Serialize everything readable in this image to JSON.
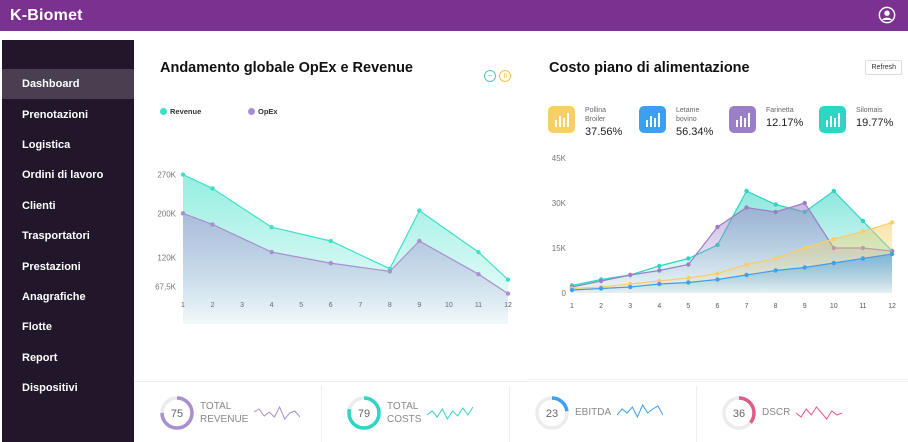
{
  "app": {
    "title": "K-Biomet"
  },
  "sidebar": {
    "items": [
      {
        "label": "Dashboard",
        "active": true
      },
      {
        "label": "Prenotazioni"
      },
      {
        "label": "Logistica"
      },
      {
        "label": "Ordini di lavoro"
      },
      {
        "label": "Clienti"
      },
      {
        "label": "Trasportatori"
      },
      {
        "label": "Prestazioni"
      },
      {
        "label": "Anagrafiche"
      },
      {
        "label": "Flotte"
      },
      {
        "label": "Report"
      },
      {
        "label": "Dispositivi"
      }
    ]
  },
  "left_panel": {
    "title": "Andamento globale OpEx e Revenue",
    "controls": {
      "minus": "−",
      "pause": "॥"
    }
  },
  "right_panel": {
    "title": "Costo piano di alimentazione",
    "refresh_label": "Refresh",
    "stats": [
      {
        "label_1": "Pollina",
        "label_2": "Broiler",
        "value": "37.56%",
        "color": "#f7cf68",
        "icon": "bar-chart-icon"
      },
      {
        "label_1": "Letame",
        "label_2": "bovino",
        "value": "56.34%",
        "color": "#3aa0ef",
        "icon": "bar-chart-icon"
      },
      {
        "label_1": "Farinetta",
        "label_2": "",
        "value": "12.17%",
        "color": "#9b7fc6",
        "icon": "bar-chart-icon"
      },
      {
        "label_1": "Silomais",
        "label_2": "",
        "value": "19.77%",
        "color": "#2fd4c2",
        "icon": "bar-chart-icon"
      }
    ]
  },
  "chart_data": [
    {
      "type": "area",
      "x": [
        1,
        2,
        3,
        4,
        5,
        6,
        7,
        8,
        9,
        10,
        11,
        12
      ],
      "y_ticks": [
        "270K",
        "200K",
        "120K",
        "67,5K"
      ],
      "y_tick_values": [
        270000,
        200000,
        120000,
        67500
      ],
      "ylim": [
        0,
        300000
      ],
      "series": [
        {
          "name": "Revenue",
          "color": "#3ee0c8",
          "values": [
            270000,
            245000,
            null,
            175000,
            null,
            150000,
            null,
            100000,
            205000,
            null,
            130000,
            80000
          ]
        },
        {
          "name": "OpEx",
          "color": "#a98fd0",
          "values": [
            200000,
            180000,
            null,
            130000,
            null,
            110000,
            null,
            95000,
            150000,
            null,
            90000,
            55000
          ]
        }
      ],
      "legend": "top-left",
      "grid": false
    },
    {
      "type": "area",
      "x": [
        1,
        2,
        3,
        4,
        5,
        6,
        7,
        8,
        9,
        10,
        11,
        12
      ],
      "y_ticks": [
        "45K",
        "30K",
        "15K",
        "0"
      ],
      "y_tick_values": [
        45000,
        30000,
        15000,
        0
      ],
      "ylim": [
        0,
        45000
      ],
      "series": [
        {
          "name": "Silomais",
          "color": "#2fd4c2",
          "values": [
            2500,
            4500,
            6000,
            9000,
            11500,
            16000,
            34000,
            29500,
            27000,
            34000,
            24000,
            14000
          ]
        },
        {
          "name": "Farinetta",
          "color": "#9b7fc6",
          "values": [
            2000,
            4000,
            6000,
            7500,
            9500,
            22000,
            28500,
            27000,
            30000,
            15000,
            15000,
            14000
          ]
        },
        {
          "name": "Pollina Broiler",
          "color": "#f7cf68",
          "values": [
            1500,
            2000,
            3000,
            4000,
            5000,
            6500,
            9500,
            11500,
            15000,
            18000,
            20500,
            23500
          ]
        },
        {
          "name": "Letame bovino",
          "color": "#3aa0ef",
          "values": [
            1000,
            1500,
            2000,
            3000,
            3500,
            4500,
            6000,
            7500,
            8500,
            10000,
            11500,
            13000
          ]
        }
      ],
      "grid": false
    }
  ],
  "kpis": [
    {
      "value": "75",
      "label_1": "TOTAL",
      "label_2": "REVENUE",
      "color": "#a98fd0",
      "percent": 75,
      "spark": [
        0.55,
        0.7,
        0.35,
        0.55,
        0.3,
        0.8,
        0.2,
        0.5,
        0.6,
        0.3
      ]
    },
    {
      "value": "79",
      "label_1": "TOTAL",
      "label_2": "COSTS",
      "color": "#2fd4c2",
      "percent": 79,
      "spark": [
        0.4,
        0.6,
        0.3,
        0.7,
        0.2,
        0.6,
        0.35,
        0.75,
        0.4,
        0.8
      ]
    },
    {
      "value": "23",
      "label_1": "EBITDA",
      "label_2": "",
      "color": "#3aa0ef",
      "percent": 23,
      "spark": [
        0.4,
        0.7,
        0.5,
        0.8,
        0.3,
        0.9,
        0.5,
        0.7,
        0.85,
        0.4
      ]
    },
    {
      "value": "36",
      "label_1": "DSCR",
      "label_2": "",
      "color": "#e05a8a",
      "percent": 36,
      "spark": [
        0.5,
        0.3,
        0.7,
        0.4,
        0.8,
        0.5,
        0.2,
        0.6,
        0.4,
        0.5
      ]
    }
  ]
}
